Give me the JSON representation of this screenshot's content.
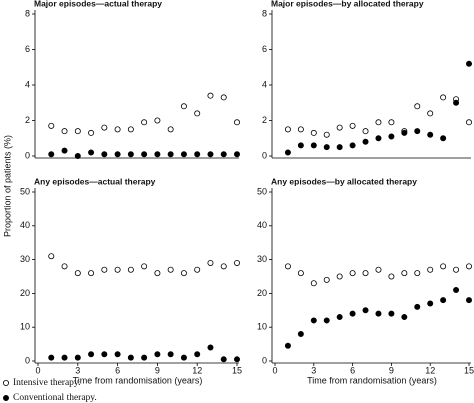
{
  "chart_data": [
    {
      "type": "scatter",
      "title": "Major episodes—actual therapy",
      "ylabel": "Proportion of patients (%)",
      "x": [
        1,
        2,
        3,
        4,
        5,
        6,
        7,
        8,
        9,
        10,
        11,
        12,
        13,
        14,
        15
      ],
      "xlim": [
        0,
        15
      ],
      "ylim": [
        0,
        8
      ],
      "yticks": [
        0,
        2,
        4,
        6,
        8
      ],
      "series": [
        {
          "name": "Intensive therapy.",
          "marker": "open",
          "color": "#000000",
          "values": [
            1.7,
            1.4,
            1.4,
            1.3,
            1.6,
            1.5,
            1.5,
            1.9,
            2.0,
            1.5,
            2.8,
            2.4,
            3.4,
            3.3,
            1.9
          ]
        },
        {
          "name": "Conventional therapy.",
          "marker": "filled",
          "color": "#000000",
          "values": [
            0.1,
            0.3,
            0.0,
            0.2,
            0.1,
            0.1,
            0.1,
            0.1,
            0.1,
            0.1,
            0.1,
            0.1,
            0.1,
            0.1,
            0.1
          ]
        }
      ]
    },
    {
      "type": "scatter",
      "title": "Major episodes—by allocated therapy",
      "x": [
        1,
        2,
        3,
        4,
        5,
        6,
        7,
        8,
        9,
        10,
        11,
        12,
        13,
        14,
        15
      ],
      "xlim": [
        0,
        15
      ],
      "ylim": [
        0,
        8
      ],
      "yticks": [
        0,
        2,
        4,
        6,
        8
      ],
      "series": [
        {
          "marker": "open",
          "color": "#000000",
          "values": [
            1.5,
            1.5,
            1.3,
            1.2,
            1.6,
            1.7,
            1.4,
            1.9,
            1.9,
            1.4,
            2.8,
            2.4,
            3.3,
            3.2,
            1.9
          ]
        },
        {
          "marker": "filled",
          "color": "#000000",
          "values": [
            0.2,
            0.6,
            0.6,
            0.5,
            0.5,
            0.6,
            0.8,
            1.0,
            1.1,
            1.3,
            1.4,
            1.2,
            1.0,
            3.0,
            5.2
          ]
        }
      ]
    },
    {
      "type": "scatter",
      "title": "Any episodes—actual therapy",
      "xlabel": "Time from randomisation (years)",
      "x": [
        1,
        2,
        3,
        4,
        5,
        6,
        7,
        8,
        9,
        10,
        11,
        12,
        13,
        14,
        15
      ],
      "xlim": [
        0,
        15
      ],
      "xticks": [
        0,
        3,
        6,
        9,
        12,
        15
      ],
      "ylim": [
        0,
        50
      ],
      "yticks": [
        0,
        10,
        20,
        30,
        40,
        50
      ],
      "series": [
        {
          "marker": "open",
          "color": "#000000",
          "values": [
            31,
            28,
            26,
            26,
            27,
            27,
            27,
            28,
            26,
            27,
            26,
            27,
            29,
            28,
            29
          ]
        },
        {
          "marker": "filled",
          "color": "#000000",
          "values": [
            1,
            1,
            1,
            2,
            2,
            2,
            1,
            1,
            2,
            2,
            1,
            2,
            4,
            0.5,
            0.5
          ]
        }
      ]
    },
    {
      "type": "scatter",
      "title": "Any episodes—by allocated therapy",
      "xlabel": "Time from randomisation (years)",
      "x": [
        1,
        2,
        3,
        4,
        5,
        6,
        7,
        8,
        9,
        10,
        11,
        12,
        13,
        14,
        15
      ],
      "xlim": [
        0,
        15
      ],
      "xticks": [
        0,
        3,
        6,
        9,
        12,
        15
      ],
      "ylim": [
        0,
        50
      ],
      "yticks": [
        0,
        10,
        20,
        30,
        40,
        50
      ],
      "series": [
        {
          "marker": "open",
          "color": "#000000",
          "values": [
            28,
            26,
            23,
            24,
            25,
            26,
            26,
            27,
            25,
            26,
            26,
            27,
            28,
            27,
            28
          ]
        },
        {
          "marker": "filled",
          "color": "#000000",
          "values": [
            4.5,
            8,
            12,
            12,
            13,
            14,
            15,
            14,
            14,
            13,
            16,
            17,
            18,
            21,
            18
          ]
        }
      ]
    }
  ]
}
